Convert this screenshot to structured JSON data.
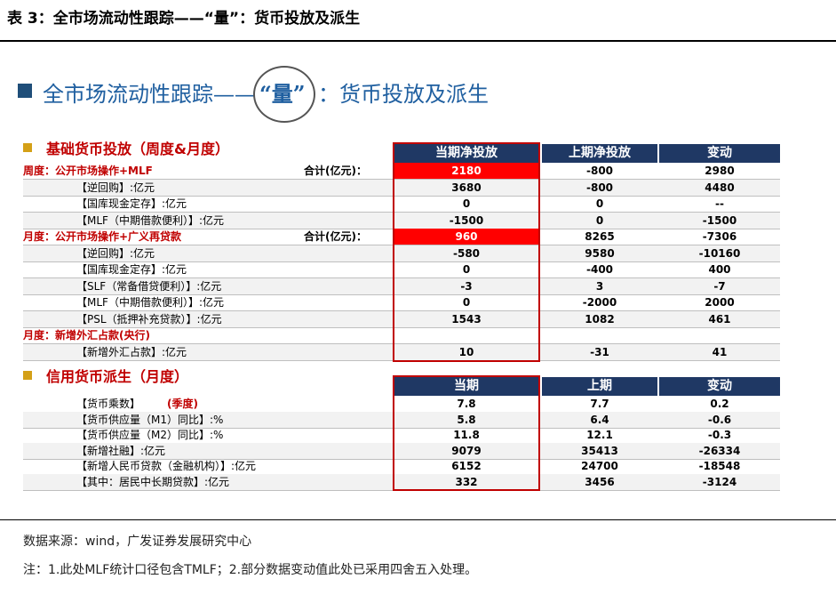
{
  "caption": "表 3：全市场流动性跟踪——“量”：货币投放及派生",
  "banner": {
    "prefix": "全市场流动性跟踪——",
    "quote": "“量”",
    "suffix": "：货币投放及派生"
  },
  "section1": {
    "title": "基础货币投放（周度&月度）",
    "headers": [
      "当期净投放",
      "上期净投放",
      "变动"
    ],
    "rows": [
      {
        "label": "周度：公开市场操作+MLF",
        "main": true,
        "total": "合计(亿元)：",
        "c1": "2180",
        "c2": "-800",
        "c3": "2980",
        "highlight": true
      },
      {
        "label": "【逆回购】:亿元",
        "c1": "3680",
        "c2": "-800",
        "c3": "4480"
      },
      {
        "label": "【国库现金定存】:亿元",
        "c1": "0",
        "c2": "0",
        "c3": "--"
      },
      {
        "label": "【MLF（中期借款便利）】:亿元",
        "c1": "-1500",
        "c2": "0",
        "c3": "-1500"
      },
      {
        "label": "月度：公开市场操作+广义再贷款",
        "main": true,
        "total": "合计(亿元)：",
        "c1": "960",
        "c2": "8265",
        "c3": "-7306",
        "highlight": true
      },
      {
        "label": "【逆回购】:亿元",
        "c1": "-580",
        "c2": "9580",
        "c3": "-10160"
      },
      {
        "label": "【国库现金定存】:亿元",
        "c1": "0",
        "c2": "-400",
        "c3": "400"
      },
      {
        "label": "【SLF（常备借贷便利）】:亿元",
        "c1": "-3",
        "c2": "3",
        "c3": "-7"
      },
      {
        "label": "【MLF（中期借款便利）】:亿元",
        "c1": "0",
        "c2": "-2000",
        "c3": "2000"
      },
      {
        "label": "【PSL（抵押补充贷款）】:亿元",
        "c1": "1543",
        "c2": "1082",
        "c3": "461"
      },
      {
        "label": "月度：新增外汇占款(央行)",
        "main": true,
        "c1": "",
        "c2": "",
        "c3": ""
      },
      {
        "label": "【新增外汇占款】:亿元",
        "c1": "10",
        "c2": "-31",
        "c3": "41"
      }
    ]
  },
  "section2": {
    "title": "信用货币派生（月度）",
    "headers": [
      "当期",
      "上期",
      "变动"
    ],
    "rows": [
      {
        "label": "【货币乘数】",
        "tag": "(季度)",
        "c1": "7.8",
        "c2": "7.7",
        "c3": "0.2"
      },
      {
        "label": "【货币供应量（M1）同比】:%",
        "c1": "5.8",
        "c2": "6.4",
        "c3": "-0.6"
      },
      {
        "label": "【货币供应量（M2）同比】:%",
        "c1": "11.8",
        "c2": "12.1",
        "c3": "-0.3"
      },
      {
        "label": "【新增社融】:亿元",
        "c1": "9079",
        "c2": "35413",
        "c3": "-26334"
      },
      {
        "label": "【新增人民币贷款（金融机构）】:亿元",
        "c1": "6152",
        "c2": "24700",
        "c3": "-18548"
      },
      {
        "label": "【其中：居民中长期贷款】:亿元",
        "c1": "332",
        "c2": "3456",
        "c3": "-3124"
      }
    ]
  },
  "source": "数据来源：wind，广发证券发展研究中心",
  "note": "注：1.此处MLF统计口径包含TMLF；2.部分数据变动值此处已采用四舍五入处理。"
}
